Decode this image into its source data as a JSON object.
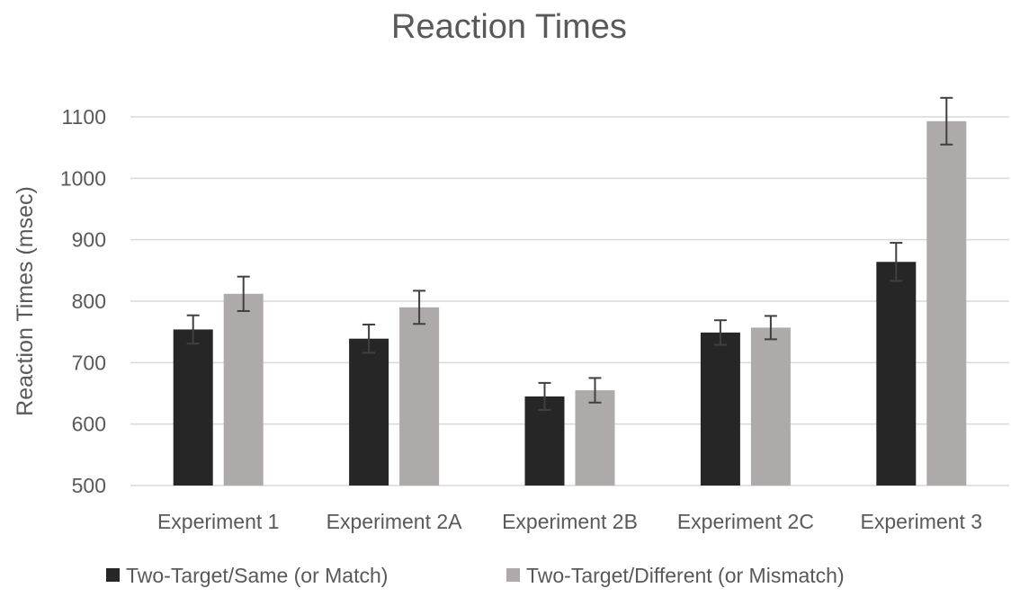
{
  "chart_data": {
    "type": "bar",
    "title": "Reaction Times",
    "xlabel": "",
    "ylabel": "Reaction Times (msec)",
    "ylim": [
      500,
      1100
    ],
    "yticks": [
      500,
      600,
      700,
      800,
      900,
      1000,
      1100
    ],
    "grid": true,
    "legend_position": "bottom",
    "categories": [
      "Experiment 1",
      "Experiment 2A",
      "Experiment 2B",
      "Experiment 2C",
      "Experiment 3"
    ],
    "series": [
      {
        "name": "Two-Target/Same (or Match)",
        "color": "#262626",
        "values": [
          754,
          739,
          645,
          749,
          864
        ],
        "error": [
          23,
          23,
          22,
          20,
          31
        ]
      },
      {
        "name": "Two-Target/Different (or Mismatch)",
        "color": "#aeaaaa",
        "values": [
          812,
          790,
          655,
          757,
          1093
        ],
        "error": [
          28,
          27,
          20,
          19,
          38
        ]
      }
    ]
  }
}
